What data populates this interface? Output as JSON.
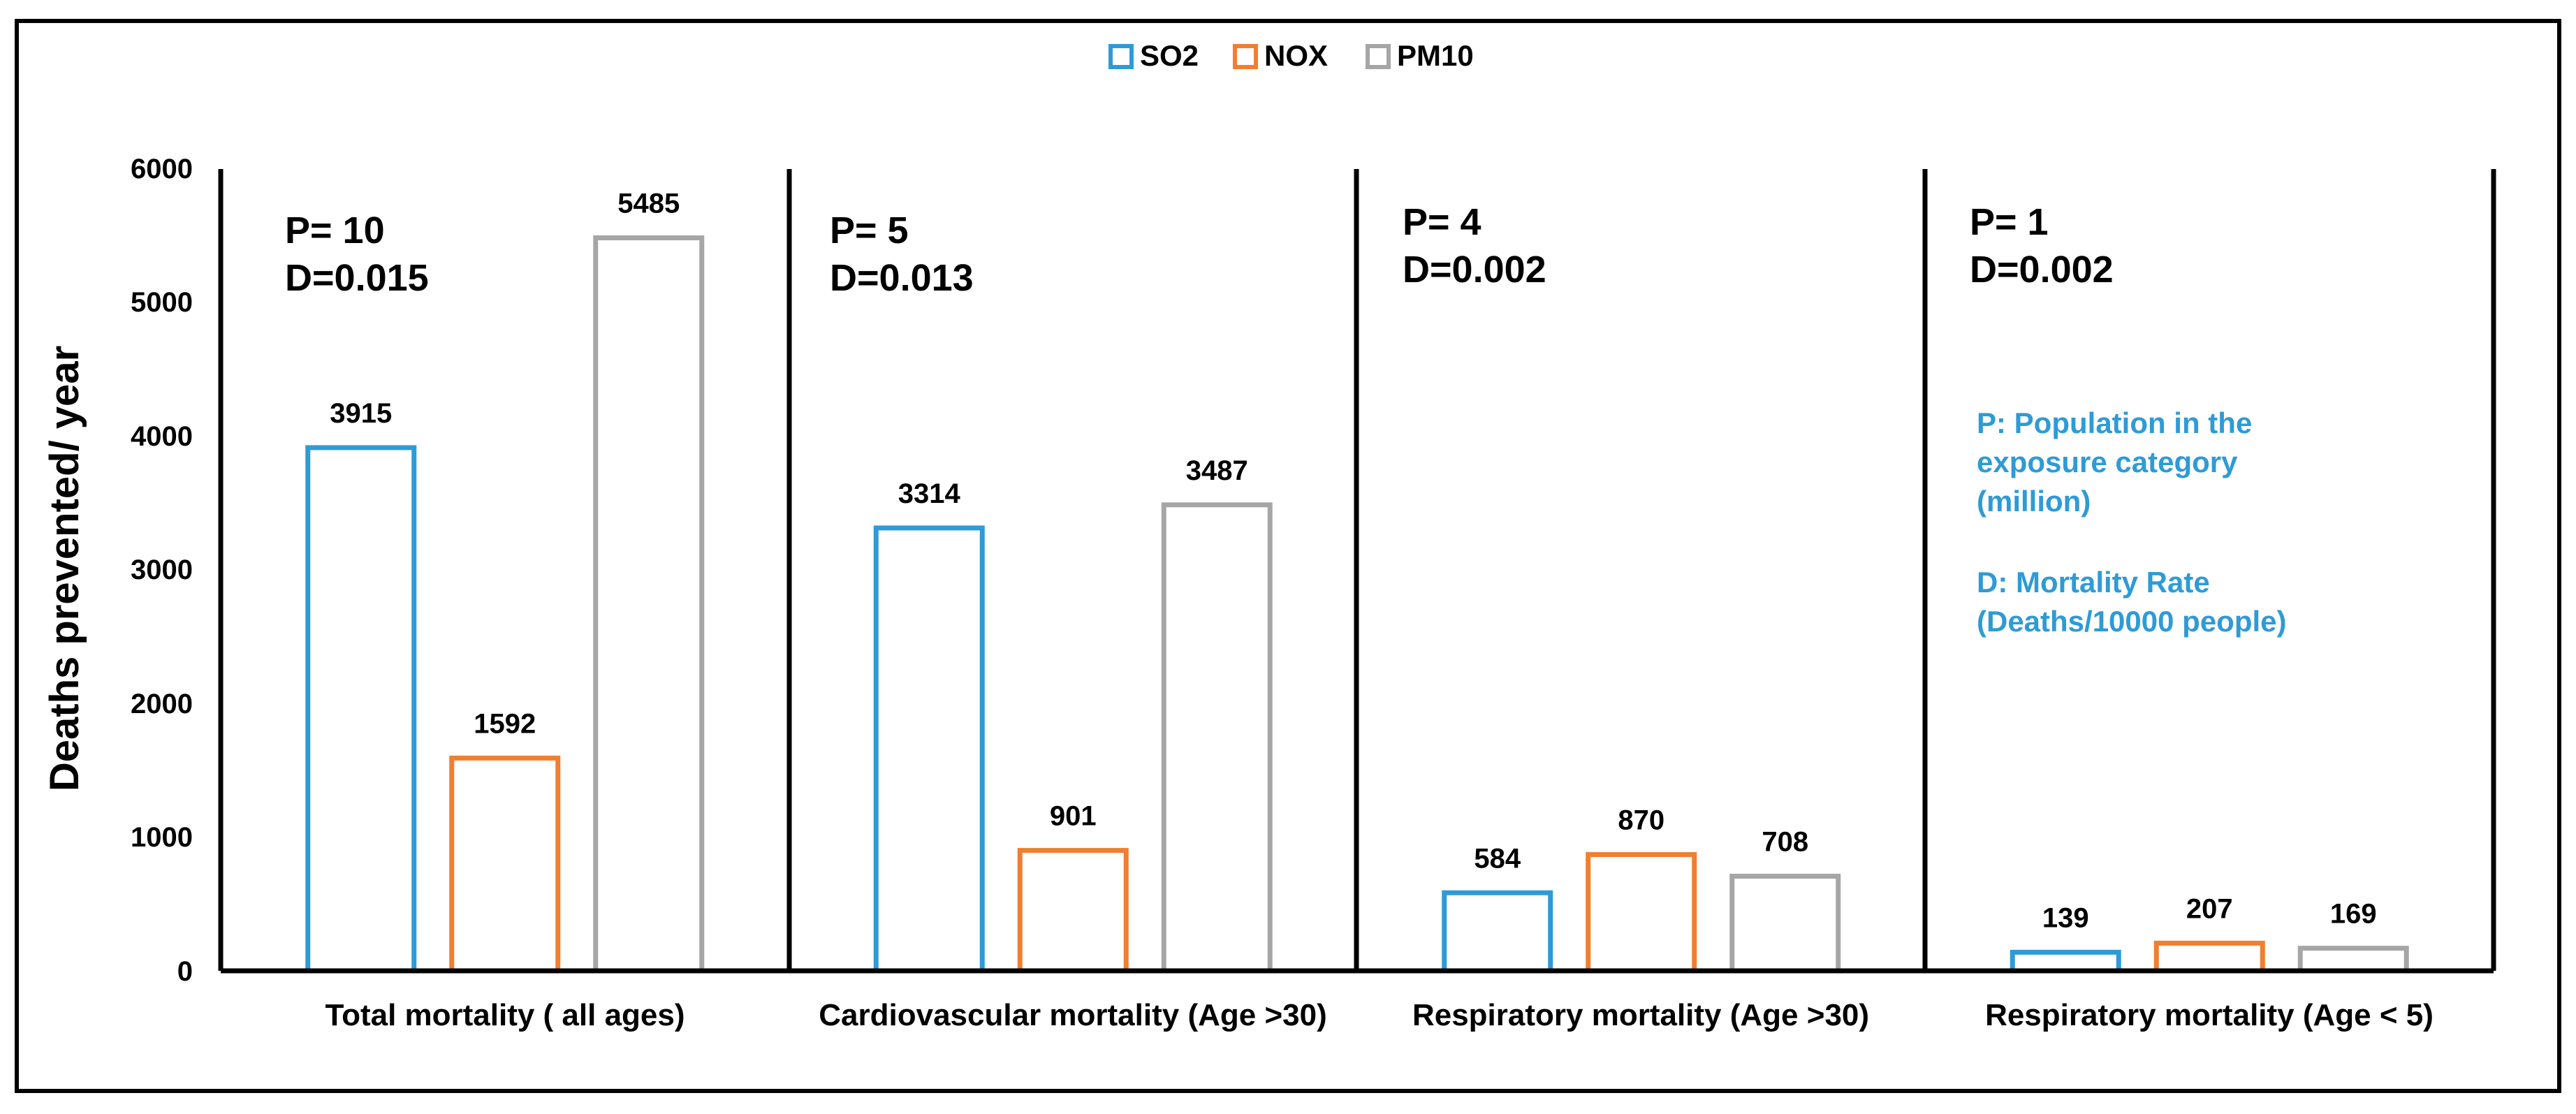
{
  "chart_data": {
    "type": "bar",
    "ylabel": "Deaths prevented/ year",
    "ylim": [
      0,
      6000
    ],
    "yticks": [
      "0",
      "1000",
      "2000",
      "3000",
      "4000",
      "5000",
      "6000"
    ],
    "categories": [
      "Total mortality ( all ages)",
      "Cardiovascular mortality (Age >30)",
      "Respiratory mortality (Age >30)",
      "Respiratory mortality (Age < 5)"
    ],
    "series": [
      {
        "name": "SO2",
        "color": "#2e9bd6",
        "values": [
          3915,
          3314,
          584,
          139
        ]
      },
      {
        "name": "NOX",
        "color": "#f07f2f",
        "values": [
          1592,
          901,
          870,
          207
        ]
      },
      {
        "name": "PM10",
        "color": "#a6a6a6",
        "values": [
          5485,
          3487,
          708,
          169
        ]
      }
    ],
    "data_labels": [
      [
        "3915",
        "3314",
        "584",
        "139"
      ],
      [
        "1592",
        "901",
        "870",
        "207"
      ],
      [
        "5485",
        "3487",
        "708",
        "169"
      ]
    ],
    "annotations": [
      {
        "p": "P= 10",
        "d": "D=0.015"
      },
      {
        "p": "P= 5",
        "d": "D=0.013"
      },
      {
        "p": "P= 4",
        "d": "D=0.002"
      },
      {
        "p": "P= 1",
        "d": "D=0.002"
      }
    ],
    "notes": [
      "P: Population in the",
      "exposure category",
      "(million)",
      "D: Mortality Rate",
      "(Deaths/10000 people)"
    ],
    "note_color": "#2e9bd6",
    "legend_position": "top"
  }
}
